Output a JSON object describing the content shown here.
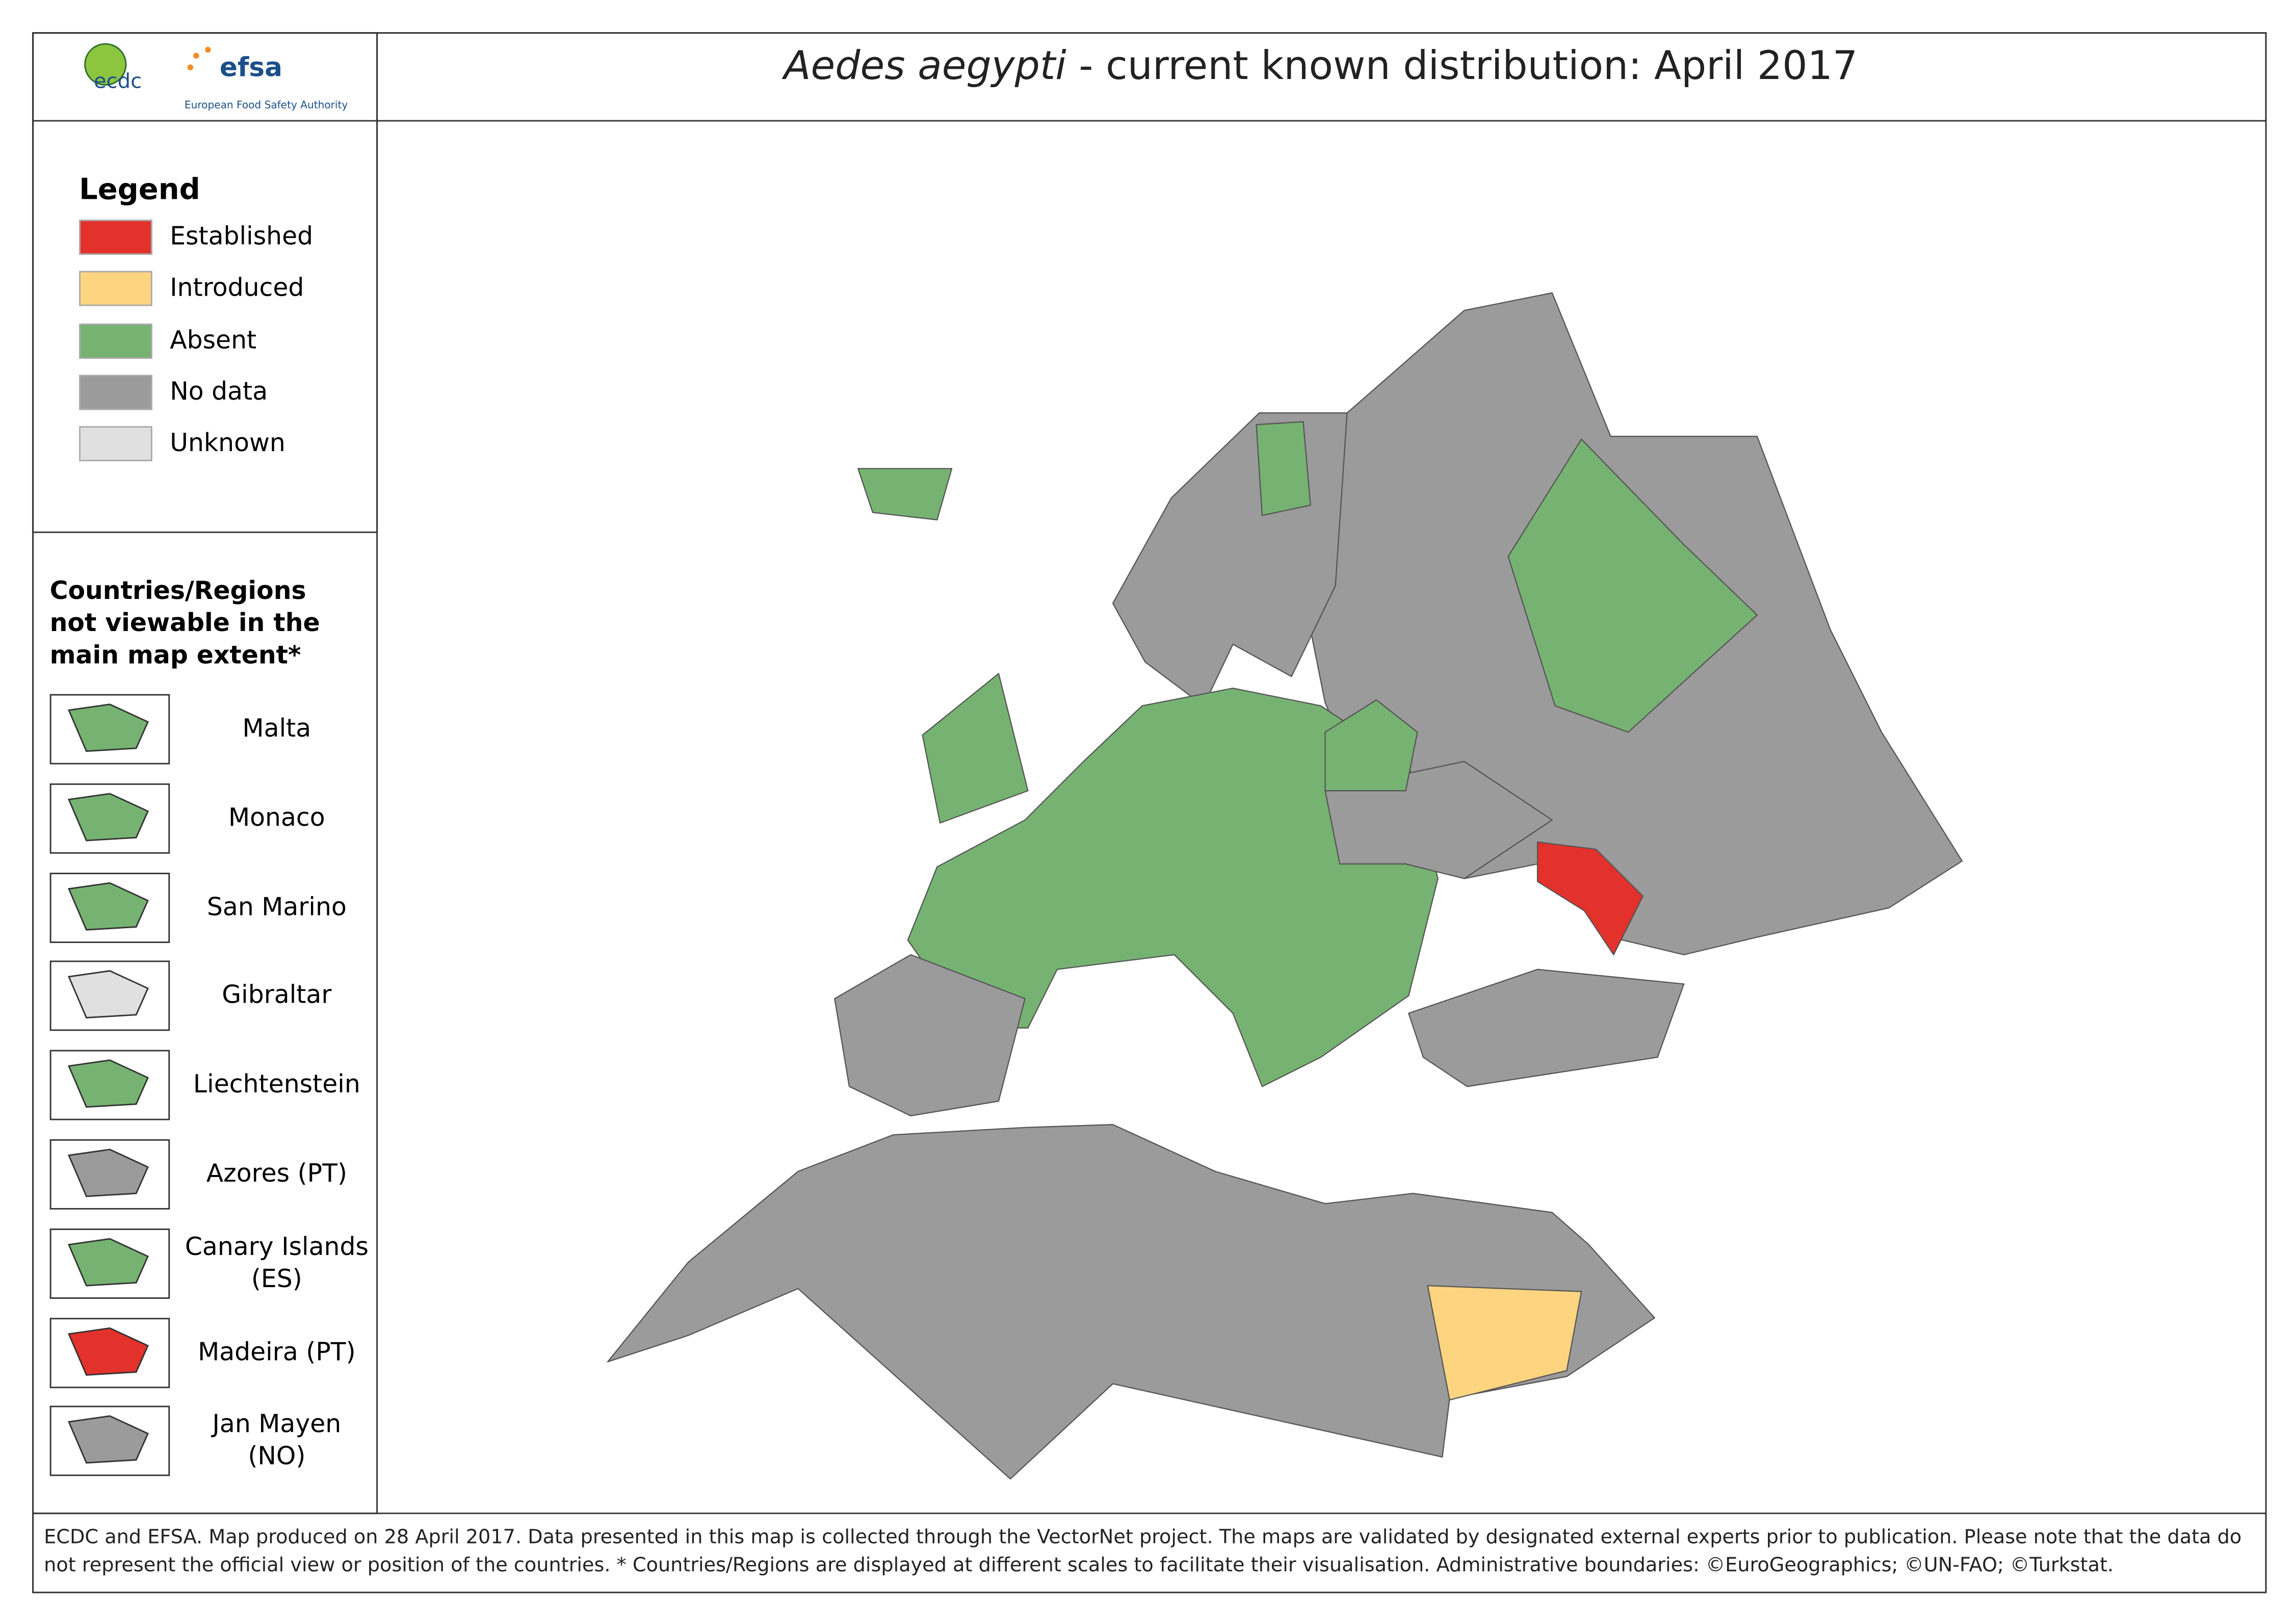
{
  "header": {
    "logos": [
      "ecdc",
      "efsa",
      "European Food Safety Authority"
    ],
    "title_species": "Aedes aegypti",
    "title_rest": " - current known distribution: April 2017"
  },
  "legend": {
    "title": "Legend",
    "items": [
      {
        "label": "Established",
        "color": "#e3312b"
      },
      {
        "label": "Introduced",
        "color": "#fdd581"
      },
      {
        "label": "Absent",
        "color": "#76b372"
      },
      {
        "label": "No data",
        "color": "#9b9b9b"
      },
      {
        "label": "Unknown",
        "color": "#e0e0e0"
      }
    ]
  },
  "insets": {
    "title": "Countries/Regions not viewable in the main map extent*",
    "items": [
      {
        "label": "Malta",
        "status": "Absent"
      },
      {
        "label": "Monaco",
        "status": "Absent"
      },
      {
        "label": "San Marino",
        "status": "Absent"
      },
      {
        "label": "Gibraltar",
        "status": "Unknown"
      },
      {
        "label": "Liechtenstein",
        "status": "Absent"
      },
      {
        "label": "Azores (PT)",
        "status": "No data"
      },
      {
        "label": "Canary Islands (ES)",
        "status": "Absent"
      },
      {
        "label": "Madeira (PT)",
        "status": "Established"
      },
      {
        "label": "Jan Mayen (NO)",
        "status": "No data"
      }
    ]
  },
  "footer": "ECDC and EFSA. Map produced on 28 April 2017. Data presented in this map is collected through the VectorNet project. The maps are validated by designated external experts prior to publication. Please note that the data do not represent the official view or position of the countries. * Countries/Regions are displayed at different scales to facilitate their visualisation. Administrative boundaries: ©EuroGeographics; ©UN-FAO; ©Turkstat."
}
